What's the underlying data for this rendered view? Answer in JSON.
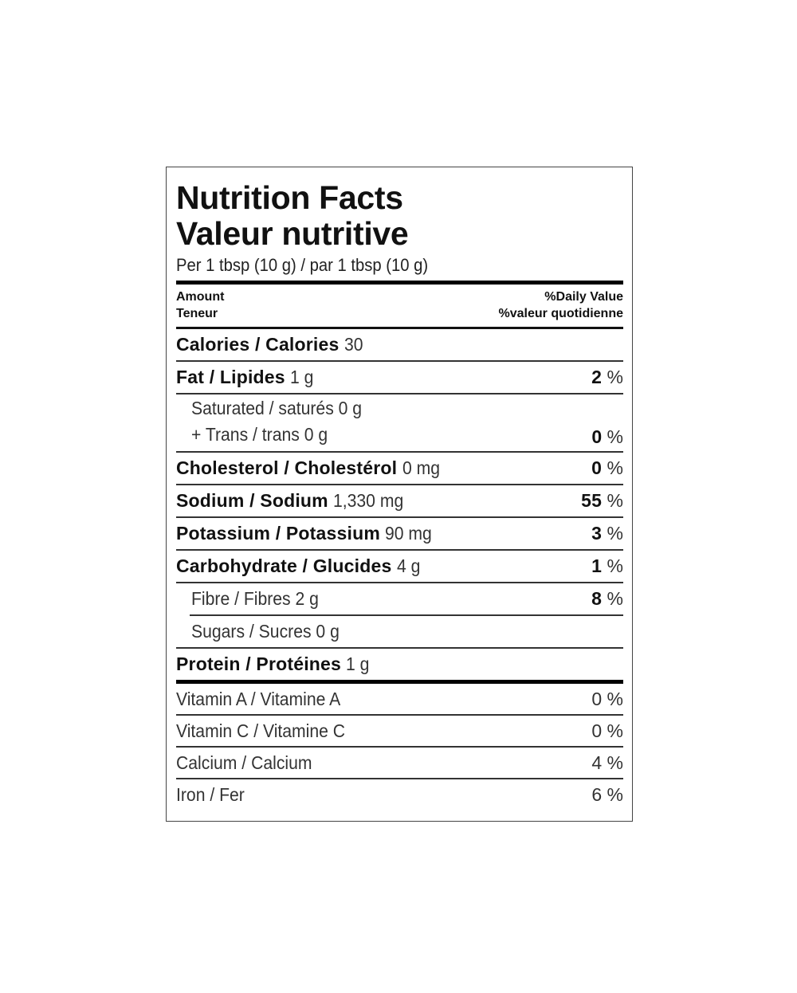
{
  "title_en": "Nutrition Facts",
  "title_fr": "Valeur nutritive",
  "serving": "Per 1 tbsp (10 g) / par 1 tbsp (10 g)",
  "header": {
    "amount": "Amount",
    "teneur": "Teneur",
    "dv_en": "%Daily Value",
    "dv_fr": "%valeur quotidienne"
  },
  "calories": {
    "label": "Calories / Calories",
    "value": "30"
  },
  "fat": {
    "label": "Fat / Lipides",
    "value": "1 g",
    "dv": "2",
    "unit": "%"
  },
  "saturated": {
    "label": "Saturated / saturés 0 g"
  },
  "trans": {
    "label": "+ Trans / trans 0 g",
    "dv": "0",
    "unit": "%"
  },
  "cholesterol": {
    "label": "Cholesterol / Cholestérol",
    "value": "0 mg",
    "dv": "0",
    "unit": "%"
  },
  "sodium": {
    "label": "Sodium / Sodium",
    "value": "1,330 mg",
    "dv": "55",
    "unit": "%"
  },
  "potassium": {
    "label": "Potassium / Potassium",
    "value": "90 mg",
    "dv": "3",
    "unit": "%"
  },
  "carbohydrate": {
    "label": "Carbohydrate / Glucides",
    "value": "4 g",
    "dv": "1",
    "unit": "%"
  },
  "fibre": {
    "label": "Fibre / Fibres 2 g",
    "dv": "8",
    "unit": "%"
  },
  "sugars": {
    "label": "Sugars / Sucres 0 g"
  },
  "protein": {
    "label": "Protein / Protéines",
    "value": "1 g"
  },
  "vitamins": [
    {
      "label": "Vitamin A / Vitamine A",
      "dv": "0 %"
    },
    {
      "label": "Vitamin C / Vitamine C",
      "dv": "0 %"
    },
    {
      "label": "Calcium / Calcium",
      "dv": "4 %"
    },
    {
      "label": "Iron / Fer",
      "dv": "6 %"
    }
  ]
}
